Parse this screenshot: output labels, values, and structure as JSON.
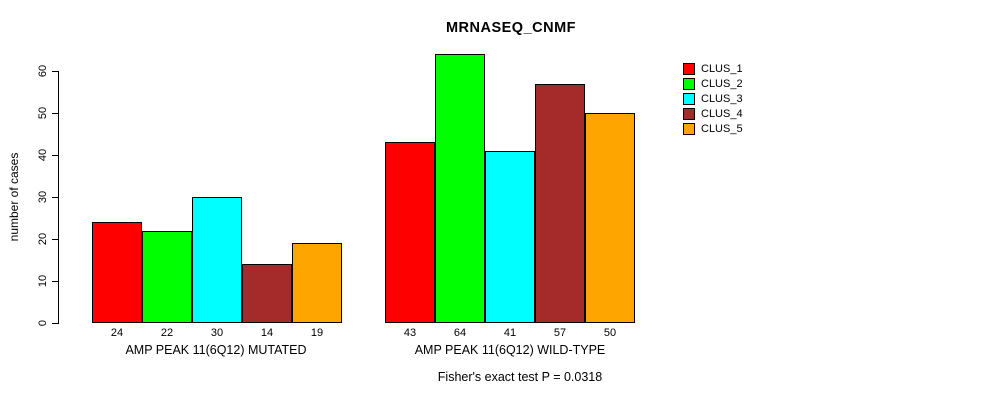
{
  "chart_data": {
    "type": "bar",
    "title": "MRNASEQ_CNMF",
    "ylabel": "number of cases",
    "xlabel": "",
    "ylim": [
      0,
      60
    ],
    "yticks": [
      0,
      10,
      20,
      30,
      40,
      50,
      60
    ],
    "grid": false,
    "legend_position": "right",
    "categories": [
      "AMP PEAK 11(6Q12) MUTATED",
      "AMP PEAK 11(6Q12) WILD-TYPE"
    ],
    "series": [
      {
        "name": "CLUS_1",
        "color": "#FF0000",
        "values": [
          24,
          43
        ]
      },
      {
        "name": "CLUS_2",
        "color": "#00FF00",
        "values": [
          22,
          64
        ]
      },
      {
        "name": "CLUS_3",
        "color": "#00FFFF",
        "values": [
          30,
          41
        ]
      },
      {
        "name": "CLUS_4",
        "color": "#A52A2A",
        "values": [
          14,
          57
        ]
      },
      {
        "name": "CLUS_5",
        "color": "#FFA500",
        "values": [
          19,
          50
        ]
      }
    ],
    "bar_value_labels": {
      "group_1": [
        24,
        22,
        30,
        14,
        19
      ],
      "group_2": [
        43,
        64,
        41,
        57,
        50
      ]
    },
    "footnote": "Fisher's exact test P = 0.0318",
    "axis_color": "#000000",
    "bar_border_color": "#000000",
    "background_color": "#FFFFFF"
  }
}
